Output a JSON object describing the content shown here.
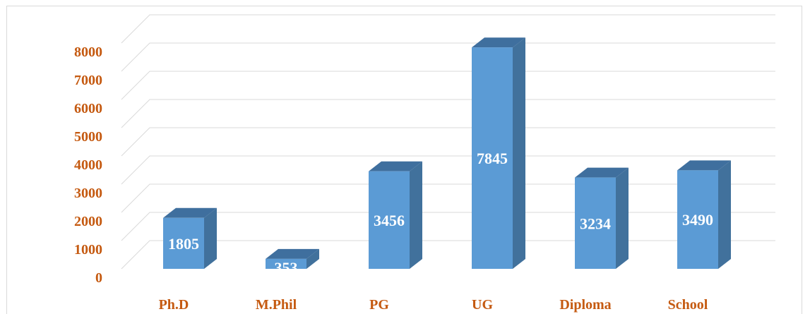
{
  "chart_data": {
    "type": "bar",
    "title": "",
    "categories": [
      "Ph.D",
      "M.Phil",
      "PG",
      "UG",
      "Diploma",
      "School"
    ],
    "values": [
      1805,
      353,
      3456,
      7845,
      3234,
      3490
    ],
    "data_labels": [
      "1805",
      "353",
      "3456",
      "7845",
      "3234",
      "3490"
    ],
    "y_ticks": [
      "0",
      "1000",
      "2000",
      "3000",
      "4000",
      "5000",
      "6000",
      "7000",
      "8000"
    ],
    "ylim": [
      0,
      8000
    ],
    "xlabel": "",
    "ylabel": "",
    "grid": true,
    "style": "3d-column",
    "colors": {
      "bar_front": "#5b9bd5",
      "bar_side": "#41719c",
      "bar_top": "#3f6f9e",
      "label_text": "#ffffff",
      "tick_text": "#c55a11",
      "grid": "#d9d9d9"
    }
  }
}
